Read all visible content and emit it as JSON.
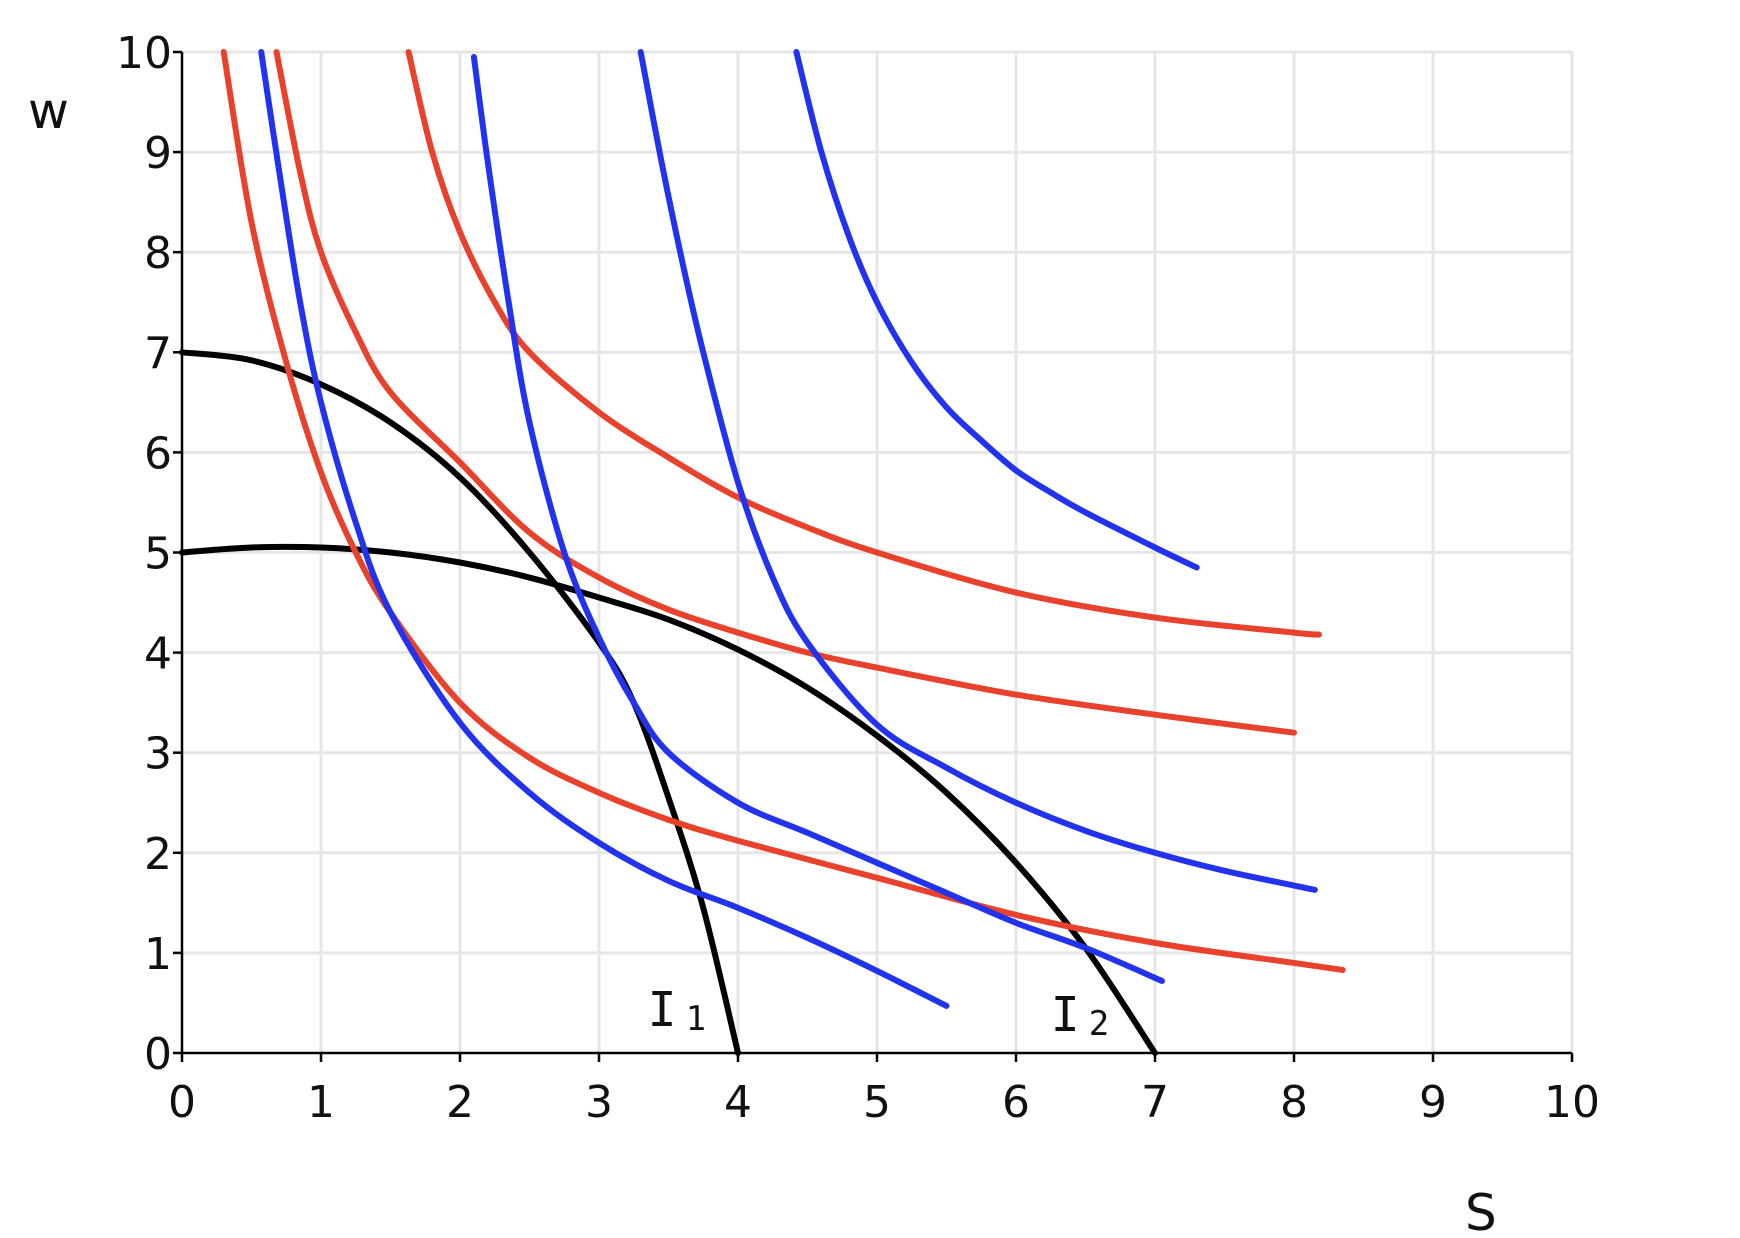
{
  "chart_data": {
    "type": "line",
    "title": "",
    "xlabel": "S",
    "ylabel": "w",
    "xlim": [
      0,
      10
    ],
    "ylim": [
      0,
      10
    ],
    "xticks": [
      "0",
      "1",
      "2",
      "3",
      "4",
      "5",
      "6",
      "7",
      "8",
      "9",
      "10"
    ],
    "yticks": [
      "0",
      "1",
      "2",
      "3",
      "4",
      "5",
      "6",
      "7",
      "8",
      "9",
      "10"
    ],
    "grid": true,
    "colors": {
      "black": "#000000",
      "red": "#e8412c",
      "blue": "#2233f0",
      "grid": "#e6e6e6"
    },
    "curve_labels": [
      {
        "main": "I",
        "sub": "1",
        "x": 3.35,
        "y": 0.45
      },
      {
        "main": "I",
        "sub": "2",
        "x": 6.25,
        "y": 0.4
      }
    ],
    "series": [
      {
        "color": "black",
        "x": [
          0,
          0.5,
          1,
          1.5,
          2,
          2.5,
          3,
          3.25,
          3.5,
          3.75,
          4.0
        ],
        "y": [
          7.0,
          6.92,
          6.68,
          6.3,
          5.75,
          5.0,
          4.1,
          3.5,
          2.55,
          1.45,
          0
        ]
      },
      {
        "color": "black",
        "x": [
          0,
          0.5,
          1,
          1.5,
          2,
          2.5,
          3,
          3.5,
          4,
          4.5,
          5,
          5.5,
          6,
          6.5,
          7.0
        ],
        "y": [
          5.0,
          5.05,
          5.05,
          5.0,
          4.9,
          4.75,
          4.55,
          4.33,
          4.03,
          3.65,
          3.17,
          2.6,
          1.9,
          1.05,
          0
        ]
      },
      {
        "color": "red",
        "x": [
          0.3,
          0.5,
          0.75,
          1.0,
          1.25,
          1.5,
          2.0,
          2.5,
          3.0,
          3.5,
          4.0,
          5.0,
          6.0,
          7.0,
          8.0,
          8.35
        ],
        "y": [
          10.0,
          8.3,
          6.9,
          5.8,
          5.0,
          4.4,
          3.5,
          2.95,
          2.6,
          2.33,
          2.12,
          1.75,
          1.38,
          1.1,
          0.9,
          0.83
        ]
      },
      {
        "color": "red",
        "x": [
          0.68,
          0.85,
          1.0,
          1.25,
          1.5,
          2.0,
          2.5,
          3.0,
          3.5,
          4.0,
          4.5,
          5.0,
          6.0,
          7.0,
          8.0
        ],
        "y": [
          10.0,
          8.8,
          8.0,
          7.2,
          6.6,
          5.9,
          5.2,
          4.75,
          4.43,
          4.2,
          4.0,
          3.85,
          3.58,
          3.38,
          3.2
        ]
      },
      {
        "color": "red",
        "x": [
          1.63,
          1.8,
          2.0,
          2.25,
          2.5,
          3.0,
          3.5,
          4.0,
          4.5,
          5.0,
          6.0,
          7.0,
          8.0,
          8.18
        ],
        "y": [
          10.0,
          9.0,
          8.2,
          7.5,
          7.0,
          6.4,
          5.95,
          5.55,
          5.25,
          5.0,
          4.6,
          4.35,
          4.2,
          4.18
        ]
      },
      {
        "color": "blue",
        "x": [
          0.57,
          0.7,
          0.85,
          1.0,
          1.25,
          1.5,
          2.0,
          2.5,
          3.0,
          3.5,
          4.0,
          4.5,
          5.0,
          5.5
        ],
        "y": [
          10.0,
          8.8,
          7.5,
          6.5,
          5.3,
          4.4,
          3.3,
          2.6,
          2.1,
          1.72,
          1.45,
          1.15,
          0.82,
          0.47
        ]
      },
      {
        "color": "blue",
        "x": [
          2.1,
          2.2,
          2.35,
          2.5,
          2.75,
          3.0,
          3.25,
          3.5,
          4.0,
          4.5,
          5.0,
          5.5,
          6.0,
          6.5,
          7.05
        ],
        "y": [
          9.95,
          8.9,
          7.5,
          6.3,
          5.0,
          4.15,
          3.5,
          3.0,
          2.5,
          2.2,
          1.9,
          1.6,
          1.3,
          1.05,
          0.72
        ]
      },
      {
        "color": "blue",
        "x": [
          3.3,
          3.45,
          3.6,
          3.75,
          4.0,
          4.25,
          4.5,
          5.0,
          5.5,
          6.0,
          6.5,
          7.0,
          7.5,
          8.15
        ],
        "y": [
          10.0,
          8.9,
          7.9,
          7.0,
          5.7,
          4.75,
          4.1,
          3.28,
          2.85,
          2.5,
          2.22,
          2.0,
          1.82,
          1.63
        ]
      },
      {
        "color": "blue",
        "x": [
          4.42,
          4.6,
          4.8,
          5.0,
          5.25,
          5.5,
          5.75,
          6.0,
          6.25,
          6.5,
          7.0,
          7.3
        ],
        "y": [
          10.0,
          9.0,
          8.15,
          7.5,
          6.9,
          6.45,
          6.12,
          5.82,
          5.6,
          5.4,
          5.05,
          4.85
        ]
      }
    ]
  }
}
